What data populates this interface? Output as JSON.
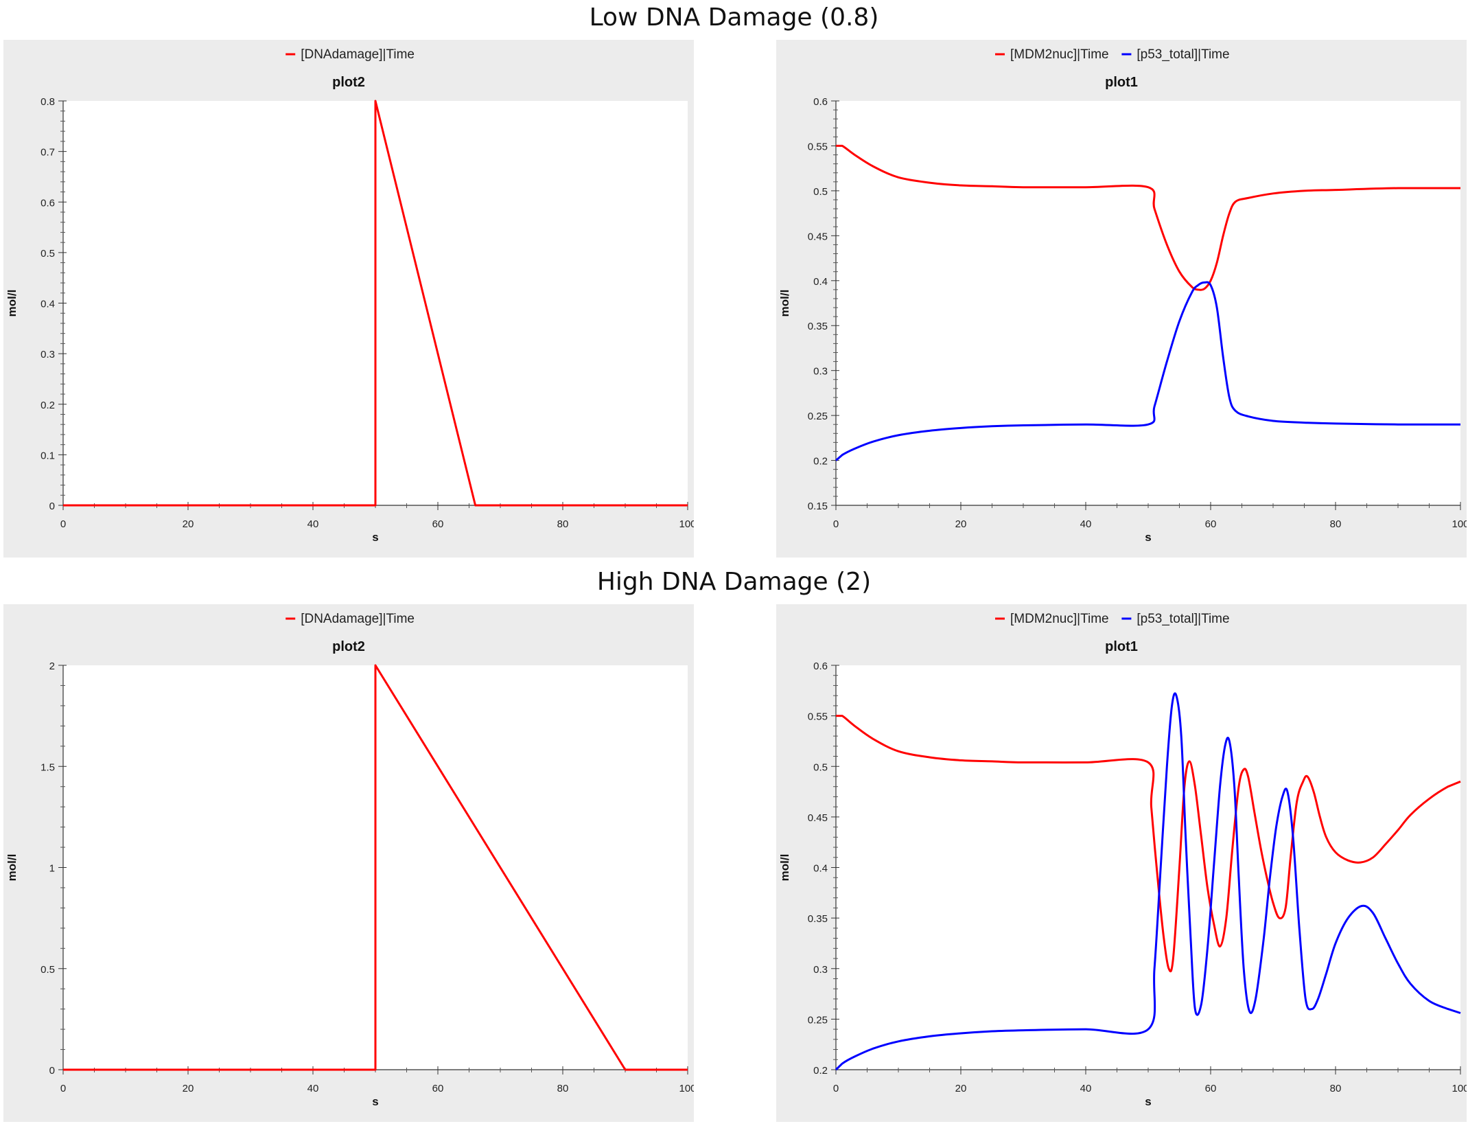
{
  "sections": [
    {
      "title": "Low DNA Damage (0.8)"
    },
    {
      "title": "High DNA Damage (2)"
    }
  ],
  "chart_data": [
    {
      "type": "line",
      "title": "plot2",
      "xlabel": "s",
      "ylabel": "mol/l",
      "xlim": [
        0,
        100
      ],
      "ylim": [
        0,
        0.8
      ],
      "xticks": [
        0,
        20,
        40,
        60,
        80,
        100
      ],
      "xticklabels": [
        "0",
        "20",
        "40",
        "60",
        "80",
        "100"
      ],
      "yticks": [
        0,
        0.1,
        0.2,
        0.3,
        0.4,
        0.5,
        0.6,
        0.7,
        0.8
      ],
      "yticklabels": [
        "0",
        "0.1",
        "0.2",
        "0.3",
        "0.4",
        "0.5",
        "0.6",
        "0.7",
        "0.8"
      ],
      "legend_position": "top-center",
      "grid": false,
      "series": [
        {
          "name": "[DNAdamage]|Time",
          "color": "#ff0000",
          "x": [
            0,
            50,
            50,
            66,
            100
          ],
          "y": [
            0,
            0,
            0.8,
            0,
            0
          ]
        }
      ]
    },
    {
      "type": "line",
      "title": "plot1",
      "xlabel": "s",
      "ylabel": "mol/l",
      "xlim": [
        0,
        100
      ],
      "ylim": [
        0.15,
        0.6
      ],
      "xticks": [
        0,
        20,
        40,
        60,
        80,
        100
      ],
      "xticklabels": [
        "0",
        "20",
        "40",
        "60",
        "80",
        "100"
      ],
      "yticks": [
        0.15,
        0.2,
        0.25,
        0.3,
        0.35,
        0.4,
        0.45,
        0.5,
        0.55,
        0.6
      ],
      "yticklabels": [
        "0.15",
        "0.2",
        "0.25",
        "0.3",
        "0.35",
        "0.4",
        "0.45",
        "0.5",
        "0.55",
        "0.6"
      ],
      "legend_position": "top-center",
      "grid": false,
      "series": [
        {
          "name": "[MDM2nuc]|Time",
          "color": "#ff0000",
          "x": [
            0,
            1,
            3,
            6,
            10,
            15,
            20,
            25,
            30,
            40,
            50,
            51,
            53,
            55,
            57,
            58,
            59,
            60,
            61,
            62,
            63,
            64,
            66,
            70,
            75,
            80,
            90,
            100
          ],
          "y": [
            0.55,
            0.55,
            0.54,
            0.527,
            0.515,
            0.509,
            0.506,
            0.505,
            0.504,
            0.504,
            0.504,
            0.48,
            0.44,
            0.41,
            0.393,
            0.39,
            0.391,
            0.4,
            0.42,
            0.45,
            0.475,
            0.488,
            0.492,
            0.497,
            0.5,
            0.501,
            0.503,
            0.503
          ]
        },
        {
          "name": "[p53_total]|Time",
          "color": "#0000ff",
          "x": [
            0,
            1,
            3,
            6,
            10,
            15,
            20,
            25,
            30,
            40,
            50,
            51,
            53,
            55,
            57,
            58,
            59,
            60,
            61,
            62,
            63,
            64,
            66,
            70,
            75,
            80,
            90,
            100
          ],
          "y": [
            0.2,
            0.206,
            0.213,
            0.221,
            0.228,
            0.233,
            0.236,
            0.238,
            0.239,
            0.24,
            0.24,
            0.26,
            0.31,
            0.355,
            0.387,
            0.395,
            0.398,
            0.395,
            0.37,
            0.315,
            0.27,
            0.255,
            0.249,
            0.244,
            0.242,
            0.241,
            0.24,
            0.24
          ]
        }
      ]
    },
    {
      "type": "line",
      "title": "plot2",
      "xlabel": "s",
      "ylabel": "mol/l",
      "xlim": [
        0,
        100
      ],
      "ylim": [
        0,
        2
      ],
      "xticks": [
        0,
        20,
        40,
        60,
        80,
        100
      ],
      "xticklabels": [
        "0",
        "20",
        "40",
        "60",
        "80",
        "100"
      ],
      "yticks": [
        0,
        0.5,
        1,
        1.5,
        2
      ],
      "yticklabels": [
        "0",
        "0.5",
        "1",
        "1.5",
        "2"
      ],
      "legend_position": "top-center",
      "grid": false,
      "series": [
        {
          "name": "[DNAdamage]|Time",
          "color": "#ff0000",
          "x": [
            0,
            50,
            50,
            90,
            100
          ],
          "y": [
            0,
            0,
            2,
            0,
            0
          ]
        }
      ]
    },
    {
      "type": "line",
      "title": "plot1",
      "xlabel": "s",
      "ylabel": "mol/l",
      "xlim": [
        0,
        100
      ],
      "ylim": [
        0.2,
        0.6
      ],
      "xticks": [
        0,
        20,
        40,
        60,
        80,
        100
      ],
      "xticklabels": [
        "0",
        "20",
        "40",
        "60",
        "80",
        "100"
      ],
      "yticks": [
        0.2,
        0.25,
        0.3,
        0.35,
        0.4,
        0.45,
        0.5,
        0.55,
        0.6
      ],
      "yticklabels": [
        "0.2",
        "0.25",
        "0.3",
        "0.35",
        "0.4",
        "0.45",
        "0.5",
        "0.55",
        "0.6"
      ],
      "legend_position": "top-center",
      "grid": false,
      "series": [
        {
          "name": "[MDM2nuc]|Time",
          "color": "#ff0000",
          "x": [
            0,
            1,
            3,
            6,
            10,
            15,
            20,
            25,
            30,
            40,
            50,
            50.5,
            51.5,
            52.5,
            53.3,
            54,
            55,
            55.8,
            56.6,
            57.5,
            58.5,
            59.5,
            60.5,
            61.5,
            62.5,
            63.5,
            64.5,
            65.3,
            66,
            67,
            68,
            69,
            70,
            71,
            72,
            72.8,
            73.8,
            74.8,
            75.5,
            76.5,
            77.5,
            78.5,
            80,
            82,
            84,
            86,
            88,
            90,
            92,
            95,
            98,
            100
          ],
          "y": [
            0.55,
            0.55,
            0.54,
            0.527,
            0.515,
            0.509,
            0.506,
            0.505,
            0.504,
            0.504,
            0.504,
            0.46,
            0.39,
            0.33,
            0.3,
            0.31,
            0.4,
            0.48,
            0.505,
            0.48,
            0.43,
            0.38,
            0.345,
            0.322,
            0.35,
            0.42,
            0.48,
            0.497,
            0.49,
            0.455,
            0.42,
            0.39,
            0.365,
            0.35,
            0.36,
            0.41,
            0.465,
            0.485,
            0.49,
            0.475,
            0.45,
            0.43,
            0.415,
            0.407,
            0.405,
            0.41,
            0.423,
            0.437,
            0.452,
            0.468,
            0.48,
            0.485
          ]
        },
        {
          "name": "[p53_total]|Time",
          "color": "#0000ff",
          "x": [
            0,
            1,
            3,
            6,
            10,
            15,
            20,
            25,
            30,
            40,
            50,
            51,
            52,
            53,
            53.8,
            54.5,
            55.3,
            56,
            56.8,
            57.5,
            58.5,
            59.5,
            60.5,
            61.5,
            62.3,
            63,
            63.8,
            64.5,
            65.3,
            66.2,
            67.2,
            68.5,
            69.5,
            70.5,
            71.5,
            72.3,
            73.2,
            74.2,
            75.2,
            76.2,
            77.2,
            78.5,
            80,
            82,
            84.2,
            86,
            88,
            90,
            92,
            95,
            98,
            100
          ],
          "y": [
            0.2,
            0.206,
            0.213,
            0.221,
            0.228,
            0.233,
            0.236,
            0.238,
            0.239,
            0.24,
            0.24,
            0.3,
            0.4,
            0.5,
            0.56,
            0.57,
            0.53,
            0.43,
            0.33,
            0.26,
            0.265,
            0.32,
            0.4,
            0.48,
            0.52,
            0.525,
            0.48,
            0.39,
            0.3,
            0.258,
            0.27,
            0.33,
            0.39,
            0.44,
            0.47,
            0.475,
            0.43,
            0.34,
            0.27,
            0.26,
            0.27,
            0.295,
            0.325,
            0.35,
            0.362,
            0.355,
            0.33,
            0.305,
            0.285,
            0.268,
            0.26,
            0.256
          ]
        }
      ]
    }
  ]
}
